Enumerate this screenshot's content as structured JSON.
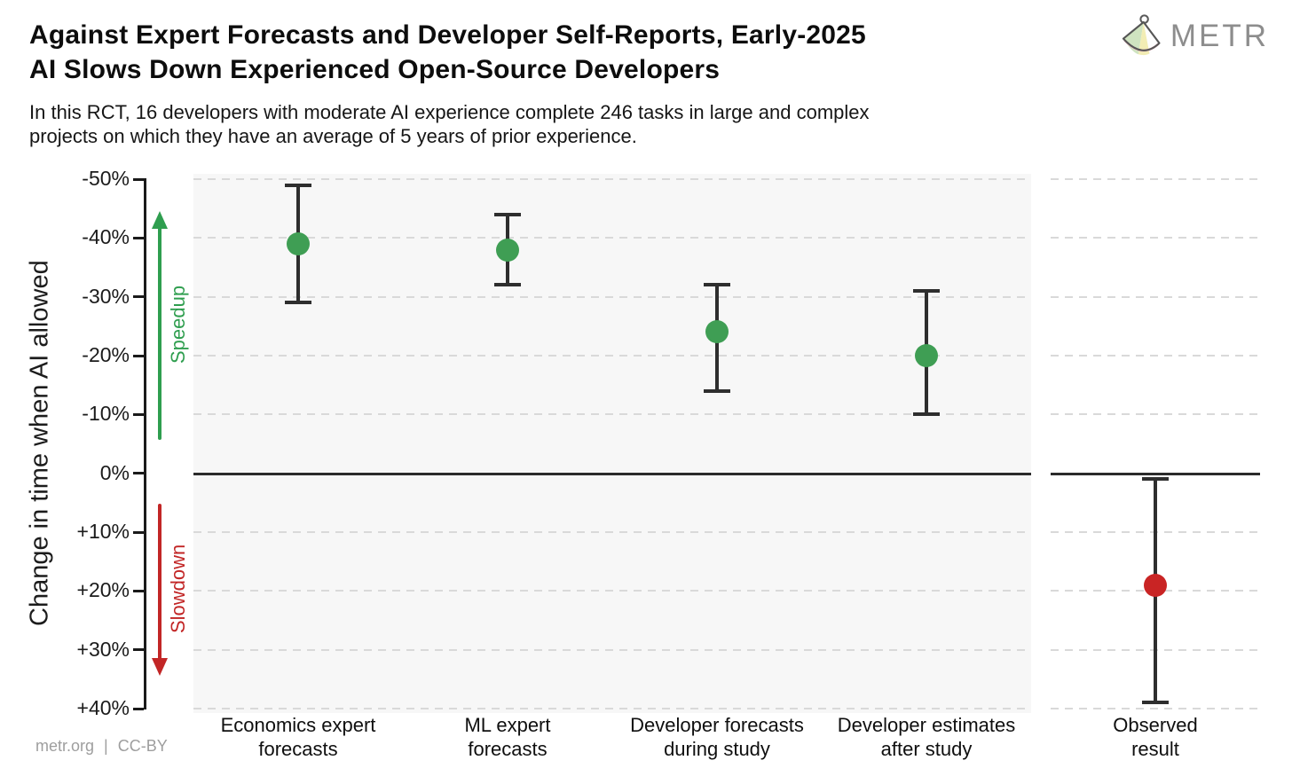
{
  "header": {
    "title_lines": [
      "Against Expert Forecasts and Developer Self-Reports, Early-2025",
      "AI Slows Down Experienced Open-Source Developers"
    ],
    "subtitle_lines": [
      "In this RCT, 16 developers with moderate AI experience complete 246 tasks in large and complex",
      "projects on which they have an average of 5 years of prior experience."
    ],
    "logo_text": "METR"
  },
  "footer": {
    "credit": "metr.org | CC-BY"
  },
  "colors": {
    "green": "#3f9e54",
    "red": "#c92424",
    "errorbar": "#2e2e2e",
    "grid": "#d9d9d9",
    "panel_bg": "#f7f7f7",
    "speedup": "#2f9e4f",
    "slowdown": "#c22626"
  },
  "chart_data": {
    "type": "scatter",
    "title": "Against Expert Forecasts and Developer Self-Reports, Early-2025 AI Slows Down Experienced Open-Source Developers",
    "subtitle": "In this RCT, 16 developers with moderate AI experience complete 246 tasks in large and complex projects on which they have an average of 5 years of prior experience.",
    "ylabel": "Change in time when AI allowed",
    "xlabel": "",
    "units": "% change in time when AI allowed",
    "ylim": [
      -50,
      40
    ],
    "orientation_note": "negative values (speedup) plotted at top, positive (slowdown) at bottom",
    "grid": "horizontal dashed gridlines, solid dark line at 0%",
    "yticks": [
      {
        "value": -50,
        "label": "-50%"
      },
      {
        "value": -40,
        "label": "-40%"
      },
      {
        "value": -30,
        "label": "-30%"
      },
      {
        "value": -20,
        "label": "-20%"
      },
      {
        "value": -10,
        "label": "-10%"
      },
      {
        "value": 0,
        "label": "0%"
      },
      {
        "value": 10,
        "label": "+10%"
      },
      {
        "value": 20,
        "label": "+20%"
      },
      {
        "value": 30,
        "label": "+30%"
      },
      {
        "value": 40,
        "label": "+40%"
      }
    ],
    "annotations": [
      {
        "text": "Speedup",
        "direction": "up",
        "color": "#2f9e4f"
      },
      {
        "text": "Slowdown",
        "direction": "down",
        "color": "#c22626"
      }
    ],
    "series": [
      {
        "panel": "forecasts",
        "points": [
          {
            "category_lines": [
              "Economics expert",
              "forecasts"
            ],
            "value": -39,
            "ci": [
              -49,
              -29
            ],
            "color": "#3f9e54"
          },
          {
            "category_lines": [
              "ML expert",
              "forecasts"
            ],
            "value": -38,
            "ci": [
              -44,
              -32
            ],
            "color": "#3f9e54"
          },
          {
            "category_lines": [
              "Developer forecasts",
              "during study"
            ],
            "value": -24,
            "ci": [
              -32,
              -14
            ],
            "color": "#3f9e54"
          },
          {
            "category_lines": [
              "Developer estimates",
              "after study"
            ],
            "value": -20,
            "ci": [
              -31,
              -10
            ],
            "color": "#3f9e54"
          }
        ]
      },
      {
        "panel": "observed",
        "points": [
          {
            "category_lines": [
              "Observed",
              "result"
            ],
            "value": 19,
            "ci": [
              1,
              39
            ],
            "color": "#c92424"
          }
        ]
      }
    ]
  }
}
